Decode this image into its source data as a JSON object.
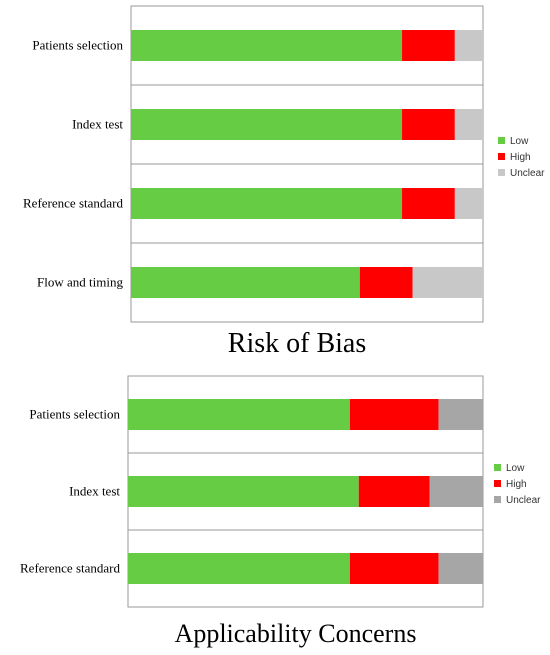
{
  "chart_data": [
    {
      "type": "bar",
      "orientation": "horizontal",
      "stacked": "percent",
      "title": "Risk of Bias",
      "categories": [
        "Patients selection",
        "Index test",
        "Reference standard",
        "Flow and timing"
      ],
      "series": [
        {
          "name": "Low",
          "color": "#66cc44",
          "values": [
            77,
            77,
            77,
            65
          ]
        },
        {
          "name": "High",
          "color": "#ff0000",
          "values": [
            15,
            15,
            15,
            15
          ]
        },
        {
          "name": "Unclear",
          "color": "#c8c8c8",
          "values": [
            8,
            8,
            8,
            20
          ]
        }
      ],
      "xlim": [
        0,
        100
      ],
      "grid": "horizontal",
      "legend": "right"
    },
    {
      "type": "bar",
      "orientation": "horizontal",
      "stacked": "percent",
      "title": "Applicability Concerns",
      "categories": [
        "Patients selection",
        "Index test",
        "Reference standard"
      ],
      "series": [
        {
          "name": "Low",
          "color": "#66cc44",
          "values": [
            62.5,
            65,
            62.5
          ]
        },
        {
          "name": "High",
          "color": "#ff0000",
          "values": [
            25,
            20,
            25
          ]
        },
        {
          "name": "Unclear",
          "color": "#a6a6a6",
          "values": [
            12.5,
            15,
            12.5
          ]
        }
      ],
      "xlim": [
        0,
        100
      ],
      "grid": "horizontal",
      "legend": "right"
    }
  ]
}
